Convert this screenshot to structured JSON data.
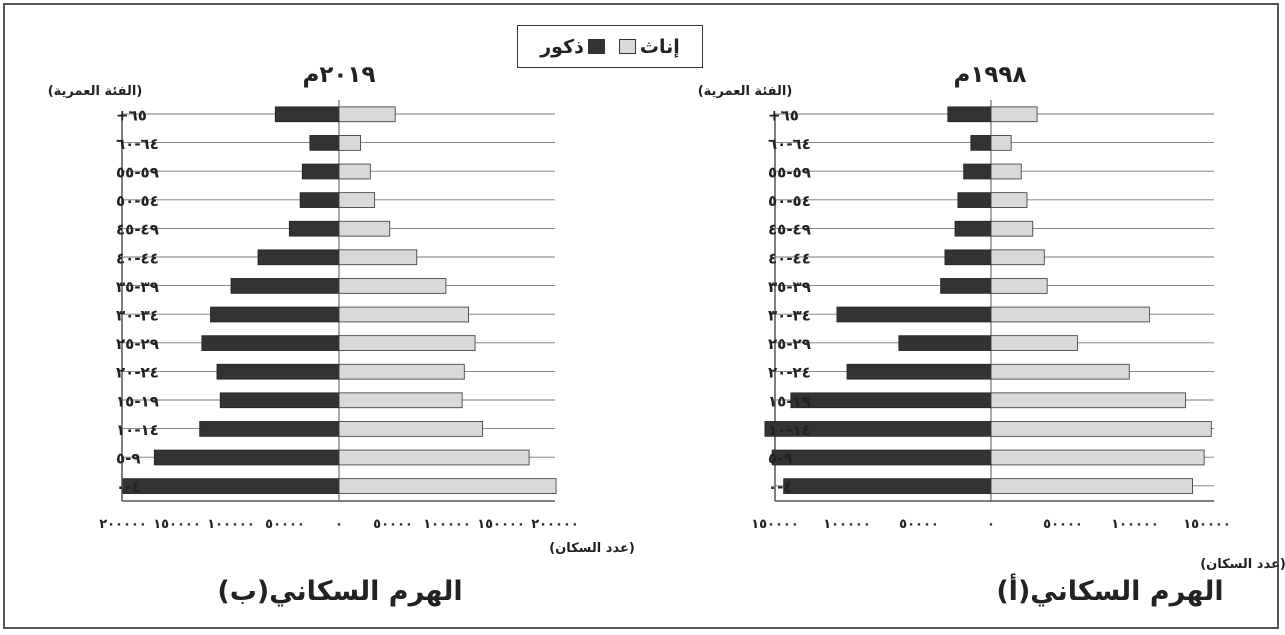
{
  "legend": {
    "female_label": "إناث",
    "male_label": "ذكور",
    "female_color": "#d9d9d9",
    "male_color": "#333333"
  },
  "chart_data": [
    {
      "type": "bar",
      "title": "الهرم السكاني(ب)",
      "subtitle": "٢٠١٩م",
      "ylabel": "(الفئة العمرية)",
      "xlabel": "(عدد السكان)",
      "categories": [
        "٦٥+",
        "٦٤-٦٠",
        "٥٩-٥٥",
        "٥٤-٥٠",
        "٤٩-٤٥",
        "٤٤-٤٠",
        "٣٩-٣٥",
        "٣٤-٣٠",
        "٢٩-٢٥",
        "٢٤-٢٠",
        "١٩-١٥",
        "١٤-١٠",
        "٩-٥",
        "٤-٠"
      ],
      "series": [
        {
          "name": "إناث",
          "values": [
            52000,
            20000,
            29000,
            33000,
            47000,
            72000,
            99000,
            120000,
            126000,
            116000,
            114000,
            133000,
            176000,
            201000
          ]
        },
        {
          "name": "ذكور",
          "values": [
            59000,
            27000,
            34000,
            36000,
            46000,
            75000,
            100000,
            119000,
            127000,
            113000,
            110000,
            129000,
            171000,
            200000
          ]
        }
      ],
      "xticks": [
        "٢٠٠٠٠٠",
        "١٥٠٠٠٠",
        "١٠٠٠٠٠",
        "٥٠٠٠٠",
        "٠",
        "٥٠٠٠٠",
        "١٠٠٠٠٠",
        "١٥٠٠٠٠",
        "٢٠٠٠٠٠"
      ],
      "xlim": [
        -200000,
        200000
      ]
    },
    {
      "type": "bar",
      "title": "الهرم السكاني(أ)",
      "subtitle": "١٩٩٨م",
      "ylabel": "(الفئة العمرية)",
      "xlabel": "(عدد السكان)",
      "categories": [
        "٦٥+",
        "٦٤-٦٠",
        "٥٩-٥٥",
        "٥٤-٥٠",
        "٤٩-٤٥",
        "٤٤-٤٠",
        "٣٩-٣٥",
        "٣٤-٣٠",
        "٢٩-٢٥",
        "٢٤-٢٠",
        "١٩-١٥",
        "١٤-١٠",
        "٩-٥",
        "٤-٠"
      ],
      "series": [
        {
          "name": "إناث",
          "values": [
            32000,
            14000,
            21000,
            25000,
            29000,
            37000,
            39000,
            110000,
            60000,
            96000,
            135000,
            153000,
            148000,
            140000
          ]
        },
        {
          "name": "ذكور",
          "values": [
            30000,
            14000,
            19000,
            23000,
            25000,
            32000,
            35000,
            107000,
            64000,
            100000,
            139000,
            157000,
            152000,
            144000
          ]
        }
      ],
      "xticks": [
        "١٥٠٠٠٠",
        "١٠٠٠٠٠",
        "٥٠٠٠٠",
        "٠",
        "٥٠٠٠٠",
        "١٠٠٠٠٠",
        "١٥٠٠٠٠"
      ],
      "xlim": [
        -150000,
        150000
      ]
    }
  ]
}
